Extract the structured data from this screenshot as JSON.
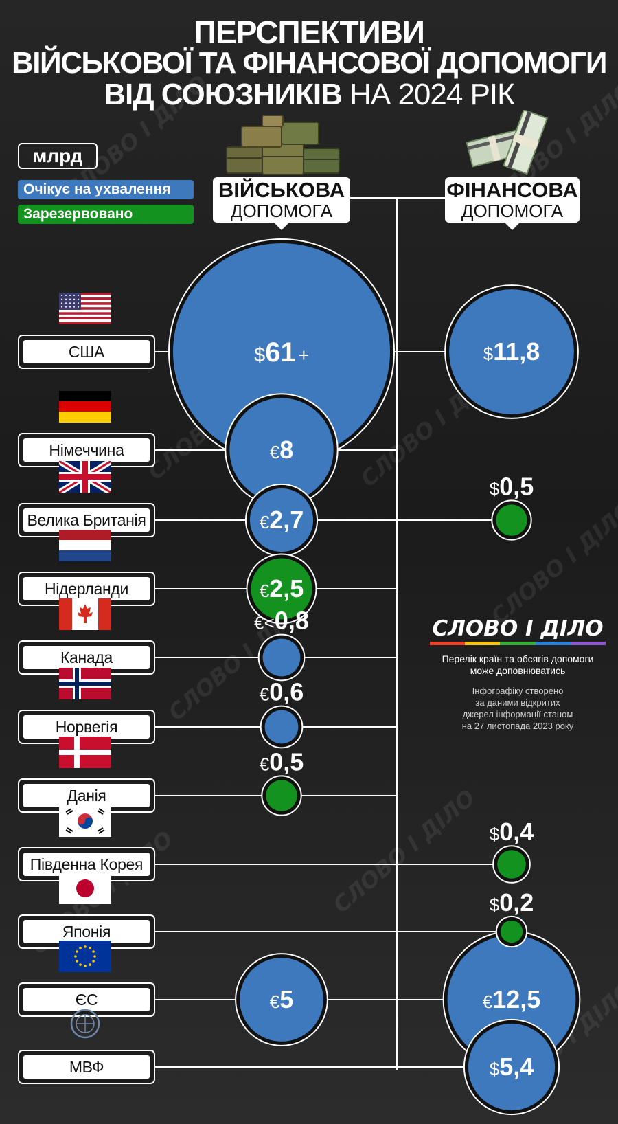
{
  "title": {
    "line1": "ПЕРСПЕКТИВИ",
    "line2": "ВІЙСЬКОВОЇ ТА ФІНАНСОВОЇ ДОПОМОГИ",
    "line3_bold": "ВІД СОЮЗНИКІВ",
    "line3_normal": " НА 2024 РІК"
  },
  "unit": "млрд",
  "legend": {
    "pending": "Очікує на ухвалення",
    "reserved": "Зарезервовано"
  },
  "colors": {
    "pending": "#3f79bd",
    "reserved": "#14921f",
    "background": "#222222"
  },
  "columns": {
    "military": {
      "bold": "ВІЙСЬКОВА",
      "normal": "ДОПОМОГА",
      "icon": "military-crates-icon"
    },
    "financial": {
      "bold": "ФІНАНСОВА",
      "normal": "ДОПОМОГА",
      "icon": "money-stack-icon"
    }
  },
  "chart_data": {
    "type": "bubble",
    "rows": [
      {
        "country": "США",
        "flag": "usa-flag-icon",
        "military": {
          "currency": "$",
          "value": 61,
          "label": "61",
          "suffix": "+",
          "status": "pending"
        },
        "financial": {
          "currency": "$",
          "value": 11.8,
          "label": "11,8",
          "status": "pending"
        }
      },
      {
        "country": "Німеччина",
        "flag": "germany-flag-icon",
        "military": {
          "currency": "€",
          "value": 8,
          "label": "8",
          "status": "pending"
        },
        "financial": null
      },
      {
        "country": "Велика Британія",
        "flag": "uk-flag-icon",
        "military": {
          "currency": "€",
          "value": 2.7,
          "label": "2,7",
          "status": "pending"
        },
        "financial": {
          "currency": "$",
          "value": 0.5,
          "label": "0,5",
          "status": "reserved"
        }
      },
      {
        "country": "Нідерланди",
        "flag": "netherlands-flag-icon",
        "military": {
          "currency": "€",
          "value": 2.5,
          "label": "2,5",
          "status": "reserved"
        },
        "financial": null
      },
      {
        "country": "Канада",
        "flag": "canada-flag-icon",
        "military": {
          "currency": "€",
          "value": 0.8,
          "label": "0,8",
          "prefix": "<",
          "status": "pending"
        },
        "financial": null
      },
      {
        "country": "Норвегія",
        "flag": "norway-flag-icon",
        "military": {
          "currency": "€",
          "value": 0.6,
          "label": "0,6",
          "status": "pending"
        },
        "financial": null
      },
      {
        "country": "Данія",
        "flag": "denmark-flag-icon",
        "military": {
          "currency": "€",
          "value": 0.5,
          "label": "0,5",
          "status": "reserved"
        },
        "financial": null
      },
      {
        "country": "Південна Корея",
        "flag": "south-korea-flag-icon",
        "military": null,
        "financial": {
          "currency": "$",
          "value": 0.4,
          "label": "0,4",
          "status": "reserved"
        }
      },
      {
        "country": "Японія",
        "flag": "japan-flag-icon",
        "military": null,
        "financial": {
          "currency": "$",
          "value": 0.2,
          "label": "0,2",
          "status": "reserved"
        }
      },
      {
        "country": "ЄС",
        "flag": "eu-flag-icon",
        "military": {
          "currency": "€",
          "value": 5,
          "label": "5",
          "status": "pending"
        },
        "financial": {
          "currency": "€",
          "value": 12.5,
          "label": "12,5",
          "status": "pending"
        }
      },
      {
        "country": "МВФ",
        "flag": "imf-logo-icon",
        "military": null,
        "financial": {
          "currency": "$",
          "value": 5.4,
          "label": "5,4",
          "status": "pending"
        }
      }
    ]
  },
  "logo": {
    "text": "СЛОВО І ДІЛО",
    "bar_colors": [
      "#e8442c",
      "#f1c31b",
      "#3eaa3c",
      "#2f7fd0",
      "#8c59c9"
    ]
  },
  "notes": {
    "line1a": "Перелік країн та обсягів допомоги",
    "line1b": "може доповнюватись",
    "line2a": "Інфографіку створено",
    "line2b": "за даними відкритих",
    "line2c": "джерел інформації станом",
    "line2d": "на 27 листопада 2023 року"
  }
}
